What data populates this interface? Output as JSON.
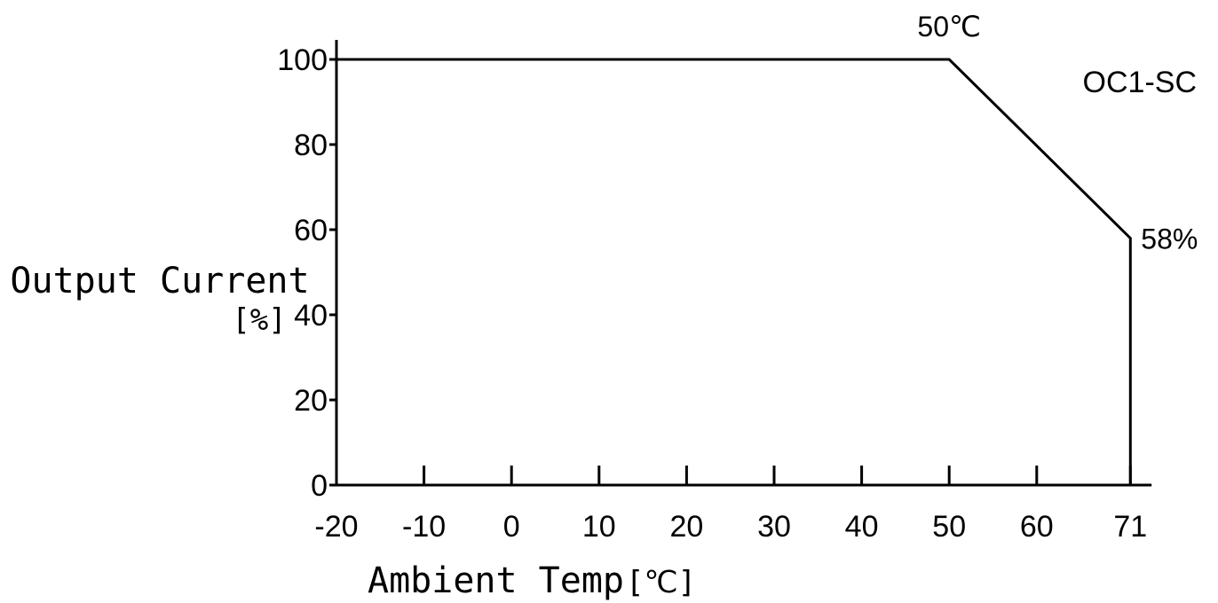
{
  "chart_data": {
    "type": "line",
    "model_label": "OC1-SC",
    "xlabel": "Ambient Temp",
    "xlabel_unit": "[℃]",
    "ylabel": "Output Current",
    "ylabel_unit": "[%]",
    "x_ticks": [
      "-20",
      "-10",
      "0",
      "10",
      "20",
      "30",
      "40",
      "50",
      "60",
      "71"
    ],
    "x_tick_values": [
      -20,
      -10,
      0,
      10,
      20,
      30,
      40,
      50,
      60,
      70.7
    ],
    "y_ticks": [
      "0",
      "20",
      "40",
      "60",
      "80",
      "100"
    ],
    "y_tick_values": [
      0,
      20,
      40,
      60,
      80,
      100
    ],
    "xlim": [
      -20,
      71.5
    ],
    "ylim": [
      0,
      100
    ],
    "grid": false,
    "series": [
      {
        "x": [
          -20,
          50,
          70.7,
          70.7
        ],
        "y": [
          100,
          100,
          58,
          0
        ]
      }
    ],
    "annotations": [
      {
        "text": "50℃",
        "x": 50,
        "y": 100,
        "anchor": "above"
      },
      {
        "text": "58%",
        "x": 70.7,
        "y": 58,
        "anchor": "right"
      }
    ]
  }
}
